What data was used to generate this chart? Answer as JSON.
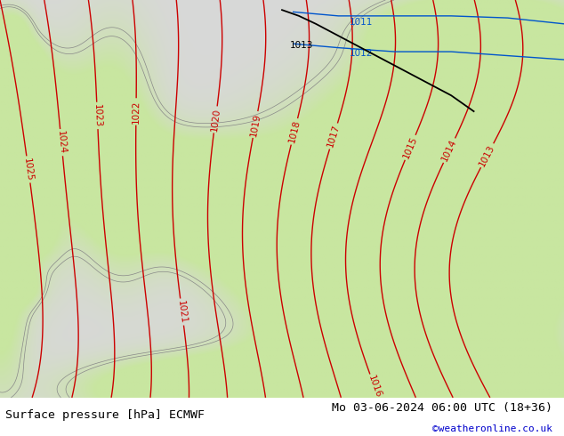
{
  "title_left": "Surface pressure [hPa] ECMWF",
  "title_right": "Mo 03-06-2024 06:00 UTC (18+36)",
  "credit": "©weatheronline.co.uk",
  "land_color_hex": [
    200,
    230,
    160
  ],
  "sea_color_hex": [
    216,
    216,
    216
  ],
  "isobar_color_red": "#cc0000",
  "isobar_color_blue": "#0055cc",
  "isobar_color_black": "#000000",
  "coast_color": "#888888",
  "bottom_bar_color": "#ffffff",
  "bottom_bar_height": 0.088,
  "title_fontsize": 9.5,
  "credit_fontsize": 8,
  "credit_color": "#0000cc",
  "label_fontsize": 7.5,
  "figsize": [
    6.34,
    4.9
  ],
  "dpi": 100
}
